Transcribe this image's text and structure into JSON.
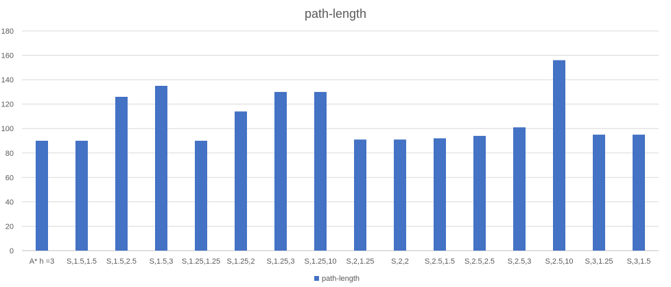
{
  "chart_data": {
    "type": "bar",
    "title": "path-length",
    "xlabel": "",
    "ylabel": "",
    "ylim": [
      0,
      180
    ],
    "yticks": [
      0,
      20,
      40,
      60,
      80,
      100,
      120,
      140,
      160,
      180
    ],
    "grid": true,
    "legend_position": "bottom",
    "categories": [
      "A* h =3",
      "S,1.5,1.5",
      "S,1.5,2.5",
      "S,1.5,3",
      "S,1.25,1.25",
      "S,1.25,2",
      "S,1.25,3",
      "S,1.25,10",
      "S,2,1.25",
      "S,2,2",
      "S,2.5,1.5",
      "S,2.5,2.5",
      "S,2.5,3",
      "S,2.5,10",
      "S,3,1.25",
      "S,3,1.5"
    ],
    "series": [
      {
        "name": "path-length",
        "color": "#4472C4",
        "values": [
          90,
          90,
          126,
          135,
          90,
          114,
          130,
          130,
          91,
          91,
          92,
          94,
          101,
          156,
          95,
          95
        ]
      }
    ]
  }
}
